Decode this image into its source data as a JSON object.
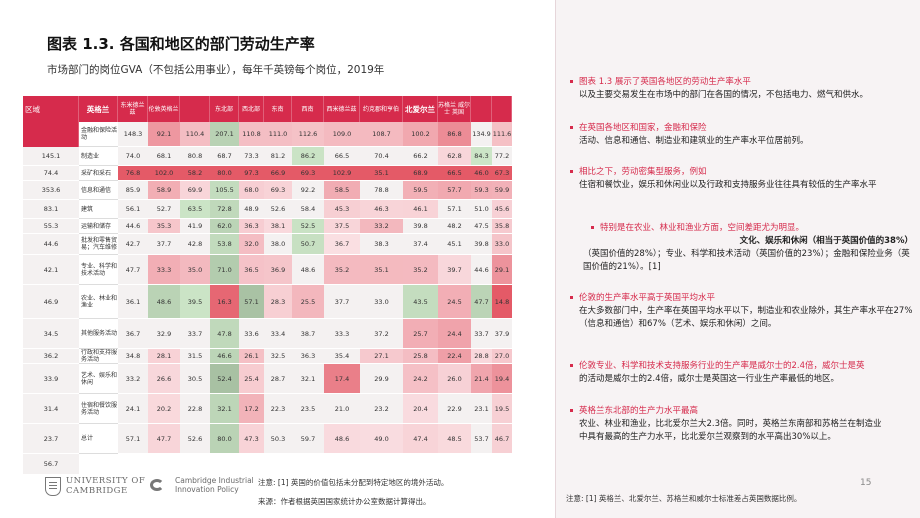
{
  "title": "图表 1.3. 各国和地区的部门劳动生产率",
  "subtitle": "市场部门的岗位GVA（不包括公用事业），每年千英镑每个岗位，2019年",
  "table": {
    "headers": [
      "区域",
      "英格兰",
      "东米德兰兹",
      "伦敦英格兰",
      "",
      "东北部",
      "西北部",
      "东南",
      "西南",
      "西米德兰兹",
      "约克郡和亨伯",
      "北爱尔兰",
      "苏格兰 威尔士 英国",
      "",
      "",
      ""
    ],
    "rows": [
      {
        "label": "金融和保险活动",
        "values": [
          "148.3",
          "92.1",
          "110.4",
          "207.1",
          "110.8",
          "111.0",
          "112.6",
          "109.0",
          "108.7",
          "100.2",
          "86.8",
          "134.9",
          "111.6",
          "145.1"
        ]
      },
      {
        "label": "制造业",
        "values": [
          "74.0",
          "68.1",
          "80.8",
          "68.7",
          "73.3",
          "81.2",
          "86.2",
          "66.5",
          "70.4",
          "66.2",
          "62.8",
          "84.3",
          "77.2",
          "74.4"
        ]
      },
      {
        "label": "采矿和采石",
        "values": [
          "76.8",
          "102.0",
          "58.2",
          "80.0",
          "97.3",
          "66.9",
          "69.3",
          "102.9",
          "35.1",
          "68.9",
          "66.5",
          "46.0",
          "67.3",
          "353.6"
        ]
      },
      {
        "label": "信息和通信",
        "values": [
          "85.9",
          "58.9",
          "69.9",
          "105.5",
          "68.0",
          "69.3",
          "92.2",
          "58.5",
          "78.8",
          "59.5",
          "57.7",
          "59.3",
          "59.9",
          "83.1"
        ]
      },
      {
        "label": "建筑",
        "values": [
          "56.1",
          "52.7",
          "63.5",
          "72.8",
          "48.9",
          "52.6",
          "58.4",
          "45.3",
          "46.3",
          "46.1",
          "57.1",
          "51.0",
          "45.6",
          "55.3"
        ]
      },
      {
        "label": "运输和储存",
        "values": [
          "44.6",
          "35.3",
          "41.9",
          "62.0",
          "36.3",
          "38.1",
          "52.5",
          "37.5",
          "33.2",
          "39.8",
          "48.2",
          "47.5",
          "35.8",
          "44.6"
        ]
      },
      {
        "label": "批发和零售贸易；汽车维修",
        "values": [
          "42.7",
          "37.7",
          "42.8",
          "53.8",
          "32.0",
          "38.0",
          "50.7",
          "36.7",
          "38.3",
          "37.4",
          "45.1",
          "39.8",
          "33.0",
          "42.1"
        ]
      },
      {
        "label": "专业、科学和技术活动",
        "values": [
          "47.7",
          "33.3",
          "35.0",
          "71.0",
          "36.5",
          "36.9",
          "48.6",
          "35.2",
          "35.1",
          "35.2",
          "39.7",
          "44.6",
          "29.1",
          "46.9"
        ]
      },
      {
        "label": "农业、林业和渔业",
        "values": [
          "36.1",
          "48.6",
          "39.5",
          "16.3",
          "57.1",
          "28.3",
          "25.5",
          "37.7",
          "33.0",
          "43.5",
          "24.5",
          "47.7",
          "14.8",
          "34.5"
        ]
      },
      {
        "label": "其他服务活动",
        "values": [
          "36.7",
          "32.9",
          "33.7",
          "47.8",
          "33.6",
          "33.4",
          "38.7",
          "33.3",
          "37.2",
          "25.7",
          "24.4",
          "33.7",
          "37.9",
          "36.2"
        ]
      },
      {
        "label": "行政和支持服务活动",
        "values": [
          "34.8",
          "28.1",
          "31.5",
          "46.6",
          "26.1",
          "32.5",
          "36.3",
          "35.4",
          "27.1",
          "25.8",
          "22.4",
          "28.8",
          "27.0",
          "33.9"
        ]
      },
      {
        "label": "艺术、娱乐和休闲",
        "values": [
          "33.2",
          "26.6",
          "30.5",
          "52.4",
          "25.4",
          "28.7",
          "32.1",
          "17.4",
          "29.9",
          "24.2",
          "26.0",
          "21.4",
          "19.4",
          "31.4"
        ]
      },
      {
        "label": "住宿和餐饮服务活动",
        "values": [
          "24.1",
          "20.2",
          "22.8",
          "32.1",
          "17.2",
          "22.3",
          "23.5",
          "21.0",
          "23.2",
          "20.4",
          "22.9",
          "23.1",
          "19.5",
          "23.7"
        ]
      },
      {
        "label": "总计",
        "values": [
          "57.1",
          "47.7",
          "52.6",
          "80.0",
          "47.3",
          "50.3",
          "59.7",
          "48.6",
          "49.0",
          "47.4",
          "48.5",
          "53.7",
          "46.7",
          "56.7"
        ]
      }
    ]
  },
  "note1": "注意: [1] 英国的价值包括未分配到特定地区的境外活动。",
  "source": "来源：作者根据英国国家统计办公室数据计算得出。",
  "logos": {
    "cambridge_line1": "UNIVERSITY OF",
    "cambridge_line2": "CAMBRIDGE",
    "cii_line1": "Cambridge Industrial",
    "cii_line2": "Innovation Policy"
  },
  "bullets": {
    "b1_red": "图表 1.3 展示了英国各地区的劳动生产率水平",
    "b1_rest": "以及主要交易发生在市场中的部门在各国的情况，不包括电力、燃气和供水。",
    "b2_red": "在英国各地区和国家，金融和保险",
    "b2_rest": "活动、信息和通信、制造业和建筑业的生产率水平位居前列。",
    "b3_red": "相比之下，劳动密集型服务，例如",
    "b3_rest": "住宿和餐饮业，娱乐和休闲业以及行政和支持服务业往往具有较低的生产率水平",
    "b3_sub_red": "特别是在农业、林业和渔业方面，空间差距尤为明显。",
    "b3_bold": "文化、娱乐和休闲（相当于英国价值的38%）",
    "b3_tail": "（英国价值的28%）；专业、科学和技术活动（英国价值的23%）；金融和保险业务（英国价值的21%）。[1]",
    "b4_red": "伦敦的生产率水平高于英国平均水平",
    "b4_rest": "在大多数部门中，生产率在英国平均水平以下，制造业和农业除外，其生产率水平在27%（信息和通信）和67%（艺术、娱乐和休闲）之间。",
    "b5_red": "伦敦专业、科学和技术支持服务行业的生产率是威尔士的2.4倍，威尔士是英",
    "b5_rest": "的活动是威尔士的2.4倍，威尔士是英国这一行业生产率最低的地区。",
    "b6_red": "英格兰东北部的生产力水平最高",
    "b6_rest": "农业、林业和渔业，比北爱尔兰大2.3倍。同时，英格兰东南部和苏格兰在制造业中具有最高的生产力水平，比北爱尔兰观察到的水平高出30%以上。"
  },
  "page_number": "15",
  "note2": "注意: [1] 英格兰、北爱尔兰、苏格兰和威尔士标准差占英国数据比例。",
  "colors": {
    "accent": "#d62b4c",
    "green": "#a8d5a2",
    "red": "#e8415f"
  }
}
